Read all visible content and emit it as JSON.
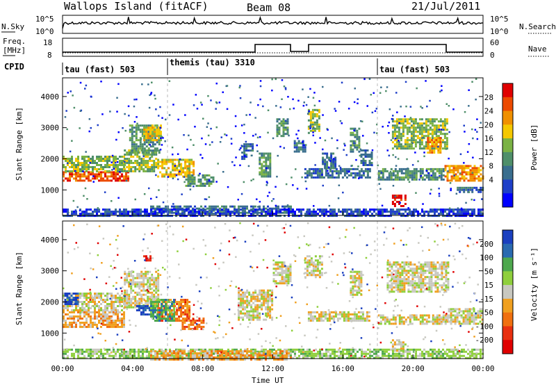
{
  "header": {
    "station": "Wallops Island (fitACF)",
    "beam": "Beam 08",
    "date": "21/Jul/2011"
  },
  "noise_panel": {
    "left_label": "N.Sky",
    "right_label": "N.Search",
    "left_ticks": [
      "10^5",
      "10^0"
    ],
    "right_ticks": [
      "10^5",
      "10^0"
    ]
  },
  "freq_panel": {
    "left_label_1": "Freq.",
    "left_label_2": "[MHz]",
    "left_ticks": [
      "18",
      "8"
    ],
    "right_label": "Nave",
    "right_ticks": [
      "60",
      "0"
    ]
  },
  "cpid": {
    "label": "CPID",
    "segments": [
      {
        "name": "tau (fast) 503",
        "start_hour": 0
      },
      {
        "name": "themis (tau) 3310",
        "start_hour": 6
      },
      {
        "name": "tau (fast) 503",
        "start_hour": 18
      }
    ]
  },
  "colors": {
    "power": [
      "#0000ff",
      "#1e3fc8",
      "#3a6e8e",
      "#4f8f6a",
      "#7ab244",
      "#f5c800",
      "#f09000",
      "#ec4a00",
      "#e00000"
    ],
    "velocity": [
      "#1a3fbf",
      "#2a6ab0",
      "#4ea84e",
      "#8fcf3c",
      "#c8c8c0",
      "#f0a020",
      "#f07010",
      "#e83010",
      "#e00000"
    ]
  },
  "chart_data": [
    {
      "type": "heatmap",
      "ylabel": "Slant Range [km]",
      "xlim": [
        "00:00",
        "24:00"
      ],
      "ylim": [
        180,
        4600
      ],
      "yticks": [
        "1000",
        "2000",
        "3000",
        "4000"
      ],
      "colorbar": {
        "label": "Power [dB]",
        "ticks": [
          "4",
          "8",
          "12",
          "16",
          "20",
          "24",
          "28"
        ],
        "range": [
          0,
          30
        ]
      },
      "echo_regions": [
        {
          "t0": 0.0,
          "t1": 3.8,
          "r0": 1300,
          "r1": 1600,
          "level": 7
        },
        {
          "t0": 0.0,
          "t1": 3.5,
          "r0": 1600,
          "r1": 2100,
          "level": 4
        },
        {
          "t0": 3.5,
          "t1": 5.4,
          "r0": 1600,
          "r1": 2300,
          "level": 4
        },
        {
          "t0": 3.8,
          "t1": 5.5,
          "r0": 2200,
          "r1": 3100,
          "level": 3
        },
        {
          "t0": 4.6,
          "t1": 5.6,
          "r0": 2600,
          "r1": 3100,
          "level": 5
        },
        {
          "t0": 5.4,
          "t1": 7.5,
          "r0": 1400,
          "r1": 2000,
          "level": 5
        },
        {
          "t0": 7.0,
          "t1": 8.6,
          "r0": 1100,
          "r1": 1500,
          "level": 3
        },
        {
          "t0": 5.0,
          "t1": 13.0,
          "r0": 250,
          "r1": 500,
          "level": 2
        },
        {
          "t0": 10.2,
          "t1": 10.8,
          "r0": 2000,
          "r1": 2500,
          "level": 2
        },
        {
          "t0": 11.2,
          "t1": 11.9,
          "r0": 1400,
          "r1": 2200,
          "level": 3
        },
        {
          "t0": 12.2,
          "t1": 12.9,
          "r0": 2700,
          "r1": 3300,
          "level": 3
        },
        {
          "t0": 13.2,
          "t1": 13.8,
          "r0": 2200,
          "r1": 2600,
          "level": 2
        },
        {
          "t0": 14.0,
          "t1": 14.6,
          "r0": 2800,
          "r1": 3600,
          "level": 4
        },
        {
          "t0": 13.8,
          "t1": 17.5,
          "r0": 1400,
          "r1": 1700,
          "level": 2
        },
        {
          "t0": 14.8,
          "t1": 15.6,
          "r0": 1700,
          "r1": 2200,
          "level": 2
        },
        {
          "t0": 16.4,
          "t1": 16.9,
          "r0": 2200,
          "r1": 3000,
          "level": 3
        },
        {
          "t0": 17.0,
          "t1": 17.6,
          "r0": 1800,
          "r1": 2300,
          "level": 2
        },
        {
          "t0": 18.0,
          "t1": 21.8,
          "r0": 1300,
          "r1": 1700,
          "level": 3
        },
        {
          "t0": 18.8,
          "t1": 21.9,
          "r0": 2300,
          "r1": 3300,
          "level": 4
        },
        {
          "t0": 20.8,
          "t1": 21.6,
          "r0": 2200,
          "r1": 2700,
          "level": 6
        },
        {
          "t0": 18.8,
          "t1": 19.6,
          "r0": 450,
          "r1": 850,
          "level": 8
        },
        {
          "t0": 21.8,
          "t1": 24.0,
          "r0": 1300,
          "r1": 1800,
          "level": 6
        },
        {
          "t0": 22.5,
          "t1": 24.0,
          "r0": 900,
          "r1": 1100,
          "level": 2
        },
        {
          "t0": 0.0,
          "t1": 24.0,
          "r0": 180,
          "r1": 400,
          "level": 1
        }
      ]
    },
    {
      "type": "heatmap",
      "xlabel": "Time UT",
      "ylabel": "Slant Range [km]",
      "xlim": [
        "00:00",
        "24:00"
      ],
      "xticks": [
        "00:00",
        "04:00",
        "08:00",
        "12:00",
        "16:00",
        "20:00",
        "00:00"
      ],
      "ylim": [
        180,
        4600
      ],
      "yticks": [
        "1000",
        "2000",
        "3000",
        "4000"
      ],
      "colorbar": {
        "label": "Velocity [m s⁻¹]",
        "ticks": [
          "200",
          "100",
          "50",
          "15",
          "-15",
          "-50",
          "-100",
          "-200"
        ],
        "range": [
          -250,
          250
        ]
      },
      "echo_regions": [
        {
          "t0": 0.0,
          "t1": 3.5,
          "r0": 1200,
          "r1": 1700,
          "level": 5
        },
        {
          "t0": 0.0,
          "t1": 3.5,
          "r0": 1700,
          "r1": 2300,
          "level": 4
        },
        {
          "t0": 0.1,
          "t1": 0.9,
          "r0": 1900,
          "r1": 2300,
          "level": 0
        },
        {
          "t0": 3.5,
          "t1": 5.5,
          "r0": 1800,
          "r1": 3000,
          "level": 4
        },
        {
          "t0": 4.2,
          "t1": 5.0,
          "r0": 1600,
          "r1": 1900,
          "level": 0
        },
        {
          "t0": 4.6,
          "t1": 5.0,
          "r0": 3300,
          "r1": 3500,
          "level": 8
        },
        {
          "t0": 5.4,
          "t1": 7.2,
          "r0": 1400,
          "r1": 2100,
          "level": 6
        },
        {
          "t0": 5.0,
          "t1": 6.4,
          "r0": 1400,
          "r1": 2100,
          "level": 2
        },
        {
          "t0": 6.8,
          "t1": 8.0,
          "r0": 1100,
          "r1": 1500,
          "level": 6
        },
        {
          "t0": 0.0,
          "t1": 24.0,
          "r0": 180,
          "r1": 500,
          "level": 3
        },
        {
          "t0": 5.0,
          "t1": 13.0,
          "r0": 180,
          "r1": 450,
          "level": 5
        },
        {
          "t0": 10.0,
          "t1": 12.0,
          "r0": 1400,
          "r1": 2400,
          "level": 4
        },
        {
          "t0": 12.0,
          "t1": 13.0,
          "r0": 2600,
          "r1": 3300,
          "level": 4
        },
        {
          "t0": 13.8,
          "t1": 14.8,
          "r0": 2800,
          "r1": 3500,
          "level": 4
        },
        {
          "t0": 14.0,
          "t1": 17.5,
          "r0": 1400,
          "r1": 1700,
          "level": 4
        },
        {
          "t0": 16.4,
          "t1": 17.0,
          "r0": 2200,
          "r1": 3000,
          "level": 4
        },
        {
          "t0": 18.0,
          "t1": 22.0,
          "r0": 1300,
          "r1": 1600,
          "level": 4
        },
        {
          "t0": 18.5,
          "t1": 22.0,
          "r0": 2300,
          "r1": 3300,
          "level": 4
        },
        {
          "t0": 18.8,
          "t1": 19.6,
          "r0": 400,
          "r1": 800,
          "level": 4
        },
        {
          "t0": 22.0,
          "t1": 24.0,
          "r0": 1300,
          "r1": 1800,
          "level": 4
        }
      ]
    }
  ]
}
